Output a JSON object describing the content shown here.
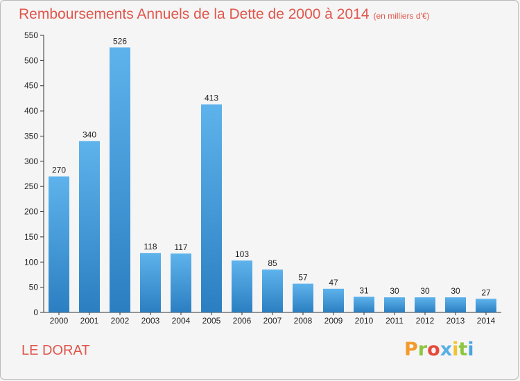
{
  "header": {
    "title": "Remboursements Annuels de la Dette de 2000 à 2014",
    "unit": "(en milliers d'€)"
  },
  "footer": {
    "commune": "LE DORAT",
    "brand": "Proxiti"
  },
  "colors": {
    "title": "#e0564c",
    "bar_top": "#5eb3ec",
    "bar_bottom": "#2b7fc1",
    "axis": "#333333",
    "brand_letters": [
      "#f39a2c",
      "#8cc63f",
      "#e6493b",
      "#5ab0e4",
      "#f3c22c",
      "#8cc63f",
      "#4aa3df"
    ]
  },
  "chart_data": {
    "type": "bar",
    "title": "Remboursements Annuels de la Dette de 2000 à 2014",
    "subtitle": "(en milliers d'€)",
    "xlabel": "",
    "ylabel": "",
    "categories": [
      "2000",
      "2001",
      "2002",
      "2003",
      "2004",
      "2005",
      "2006",
      "2007",
      "2008",
      "2009",
      "2010",
      "2011",
      "2012",
      "2013",
      "2014"
    ],
    "values": [
      270,
      340,
      526,
      118,
      117,
      413,
      103,
      85,
      57,
      47,
      31,
      30,
      30,
      30,
      27
    ],
    "ylim": [
      0,
      550
    ],
    "yticks": [
      0,
      50,
      100,
      150,
      200,
      250,
      300,
      350,
      400,
      450,
      500,
      550
    ],
    "grid": false,
    "data_labels": true
  }
}
